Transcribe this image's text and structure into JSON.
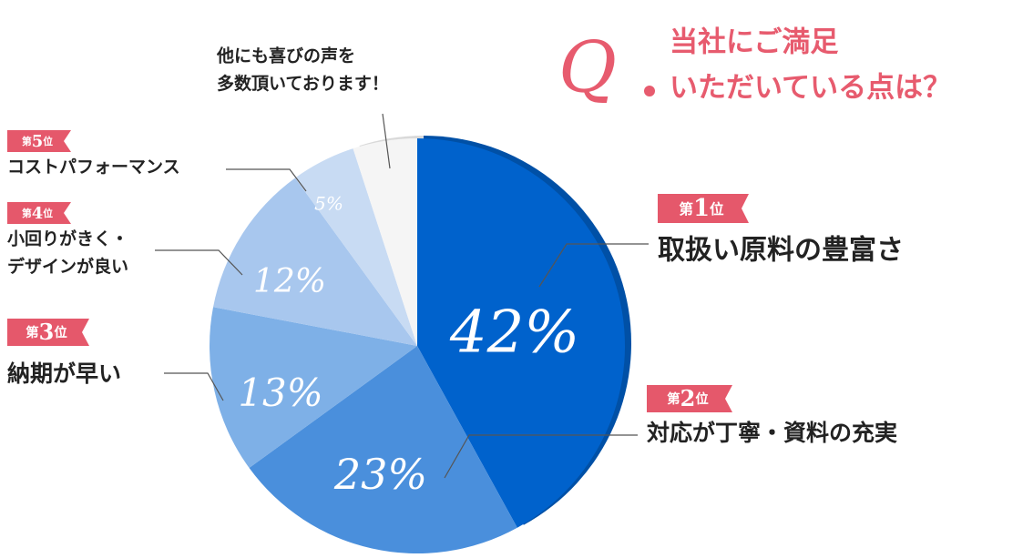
{
  "chart_data": {
    "type": "pie",
    "title": {
      "mark": "Q",
      "lines": [
        "当社にご満足",
        "いただいている点は？"
      ]
    },
    "categories": [
      [
        "取扱い原料の豊富さ"
      ],
      [
        "対応が丁寧・資料の充実"
      ],
      [
        "納期が早い"
      ],
      [
        "小回りがきく・",
        "デザインが良い"
      ],
      [
        "コストパフォーマンス"
      ],
      [
        "他にも喜びの声を",
        "多数頂いております！"
      ]
    ],
    "values": [
      42,
      23,
      13,
      12,
      5,
      5
    ],
    "value_labels": [
      "42%",
      "23%",
      "13%",
      "12%",
      "5%",
      null
    ],
    "ranks": [
      [
        "第",
        "1",
        "位"
      ],
      [
        "第",
        "2",
        "位"
      ],
      [
        "第",
        "3",
        "位"
      ],
      [
        "第",
        "4",
        "位"
      ],
      [
        "第",
        "5",
        "位"
      ],
      null
    ],
    "colors": [
      "#0062cc",
      "#4a8fdc",
      "#7eb0e7",
      "#a8c7ee",
      "#c8dbf3",
      "#f5f5f5"
    ],
    "edge_colors": [
      "#0050a6",
      null,
      null,
      null,
      null,
      "#d9d9d9"
    ]
  }
}
